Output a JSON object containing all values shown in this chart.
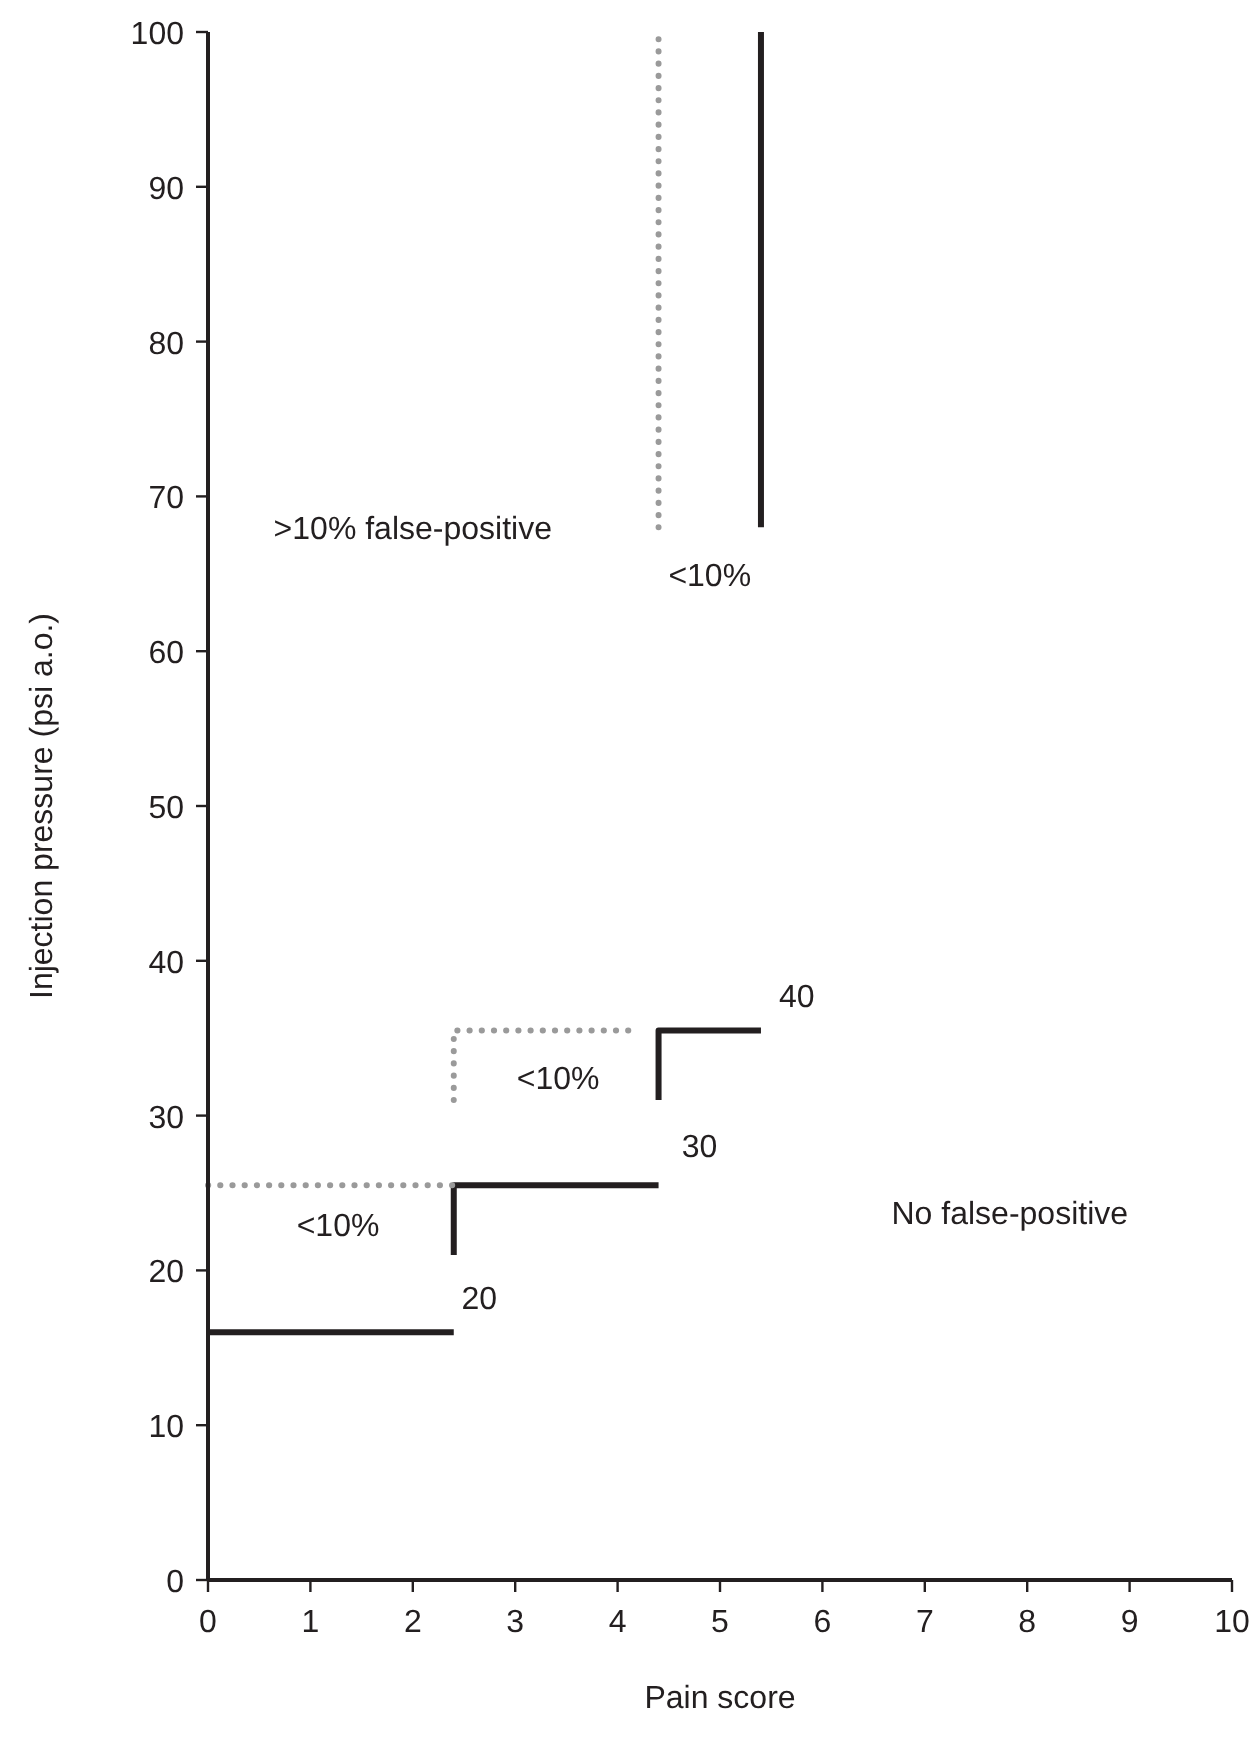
{
  "chart_data": {
    "type": "line",
    "xlabel": "Pain score",
    "ylabel": "Injection pressure (psi a.o.)",
    "xlim": [
      0,
      10
    ],
    "ylim": [
      0,
      100
    ],
    "xticks": [
      0,
      1,
      2,
      3,
      4,
      5,
      6,
      7,
      8,
      9,
      10
    ],
    "yticks": [
      0,
      10,
      20,
      30,
      40,
      50,
      60,
      70,
      80,
      90,
      100
    ],
    "marker": "none",
    "series": [
      {
        "color": "#231f20",
        "line_style": "solid",
        "x": [
          0,
          2.4
        ],
        "values": [
          16,
          16
        ]
      },
      {
        "color": "#231f20",
        "line_style": "solid",
        "x": [
          2.4,
          2.4,
          4.4
        ],
        "values": [
          21,
          25.5,
          25.5
        ]
      },
      {
        "color": "#231f20",
        "line_style": "solid",
        "x": [
          4.4,
          4.4,
          5.4
        ],
        "values": [
          31,
          35.5,
          35.5
        ]
      },
      {
        "color": "#231f20",
        "line_style": "solid",
        "x": [
          5.4,
          5.4
        ],
        "values": [
          68,
          100
        ]
      },
      {
        "color": "#9a9a9a",
        "line_style": "dotted",
        "x": [
          0,
          2.4
        ],
        "values": [
          25.5,
          25.5
        ]
      },
      {
        "color": "#9a9a9a",
        "line_style": "dotted",
        "x": [
          2.4,
          2.4,
          4.2
        ],
        "values": [
          31,
          35.5,
          35.5
        ]
      },
      {
        "color": "#9a9a9a",
        "line_style": "dotted",
        "x": [
          4.4,
          4.4
        ],
        "values": [
          68,
          100
        ]
      }
    ],
    "annotations": [
      "20",
      "30",
      "40",
      "<10%",
      "<10%",
      "<10%",
      ">10% false-positive",
      "No false-positive"
    ]
  }
}
